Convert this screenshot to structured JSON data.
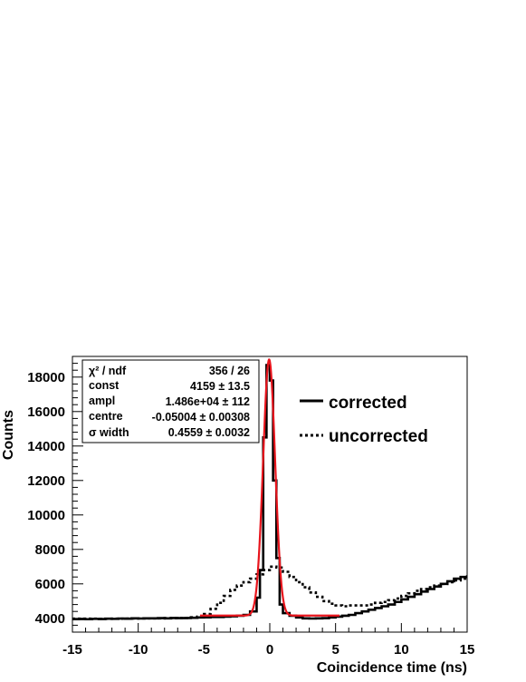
{
  "chart_data": {
    "type": "line",
    "xlabel": "Coincidence time (ns)",
    "ylabel": "Counts",
    "xlim": [
      -15,
      15
    ],
    "ylim": [
      3200,
      19200
    ],
    "x_ticks": [
      -15,
      -10,
      -5,
      0,
      5,
      10,
      15
    ],
    "y_ticks": [
      4000,
      6000,
      8000,
      10000,
      12000,
      14000,
      16000,
      18000
    ],
    "grid": false,
    "legend_position": "right",
    "legend": [
      {
        "label": "corrected",
        "style": "solid"
      },
      {
        "label": "uncorrected",
        "style": "dotted"
      }
    ],
    "series": [
      {
        "name": "corrected",
        "style": "solid",
        "color": "#000000",
        "x": [
          -15,
          -14.5,
          -14,
          -13.5,
          -13,
          -12.5,
          -12,
          -11.5,
          -11,
          -10.5,
          -10,
          -9.5,
          -9,
          -8.5,
          -8,
          -7.5,
          -7,
          -6.5,
          -6,
          -5.5,
          -5,
          -4.5,
          -4,
          -3.5,
          -3,
          -2.5,
          -2,
          -1.5,
          -1,
          -0.75,
          -0.5,
          -0.25,
          0,
          0.25,
          0.5,
          0.75,
          1,
          1.5,
          2,
          2.5,
          3,
          3.5,
          4,
          4.5,
          5,
          5.5,
          6,
          6.5,
          7,
          7.5,
          8,
          8.5,
          9,
          9.5,
          10,
          10.5,
          11,
          11.5,
          12,
          12.5,
          13,
          13.5,
          14,
          14.5,
          15
        ],
        "values": [
          3950,
          3960,
          3950,
          3970,
          3960,
          3980,
          3970,
          3990,
          3980,
          4000,
          3990,
          4000,
          4000,
          4010,
          4000,
          4020,
          4010,
          4020,
          4030,
          4050,
          4060,
          4080,
          4080,
          4100,
          4120,
          4150,
          4200,
          4400,
          5200,
          6800,
          14500,
          18700,
          17800,
          12000,
          7500,
          4800,
          4300,
          4150,
          4050,
          4000,
          3990,
          4000,
          4010,
          4050,
          4100,
          4150,
          4200,
          4300,
          4400,
          4500,
          4600,
          4700,
          4800,
          4950,
          5100,
          5250,
          5400,
          5550,
          5700,
          5850,
          6000,
          6150,
          6300,
          6400,
          6500
        ]
      },
      {
        "name": "uncorrected",
        "style": "dotted",
        "color": "#000000",
        "x": [
          -15,
          -14,
          -13,
          -12,
          -11,
          -10,
          -9,
          -8,
          -7,
          -6,
          -5.5,
          -5,
          -4.5,
          -4,
          -3.5,
          -3,
          -2.5,
          -2,
          -1.5,
          -1,
          -0.5,
          0,
          0.5,
          1,
          1.5,
          2,
          2.5,
          3,
          3.5,
          4,
          4.5,
          5,
          5.5,
          6,
          6.5,
          7,
          7.5,
          8,
          8.5,
          9,
          9.5,
          10,
          10.5,
          11,
          11.5,
          12,
          12.5,
          13,
          13.5,
          14,
          14.5,
          15
        ],
        "values": [
          3980,
          3980,
          3970,
          3980,
          3990,
          4000,
          4000,
          4010,
          4020,
          4060,
          4100,
          4250,
          4550,
          4900,
          5300,
          5650,
          5900,
          6100,
          6300,
          6550,
          6800,
          7000,
          6950,
          6700,
          6400,
          6100,
          5800,
          5500,
          5250,
          5000,
          4850,
          4750,
          4700,
          4750,
          4750,
          4750,
          4800,
          4900,
          4950,
          5050,
          5150,
          5300,
          5450,
          5600,
          5700,
          5800,
          5900,
          6000,
          6100,
          6200,
          6300,
          6400
        ]
      },
      {
        "name": "fit",
        "style": "solid",
        "color": "#e8141c",
        "function": "const + ampl*exp(-0.5*((x-centre)/width)^2)",
        "const": 4159,
        "ampl": 14860,
        "centre": -0.05004,
        "width": 0.4559,
        "x_range": [
          -5.3,
          5.3
        ]
      }
    ],
    "stats_box": {
      "rows": [
        {
          "name": "χ² / ndf",
          "value": "356 / 26"
        },
        {
          "name": "const",
          "value": "4159 ± 13.5"
        },
        {
          "name": "ampl",
          "value": "1.486e+04 ± 112"
        },
        {
          "name": "centre",
          "value": "-0.05004 ± 0.00308"
        },
        {
          "name": "σ  width",
          "value": "0.4559 ± 0.0032"
        }
      ]
    }
  }
}
